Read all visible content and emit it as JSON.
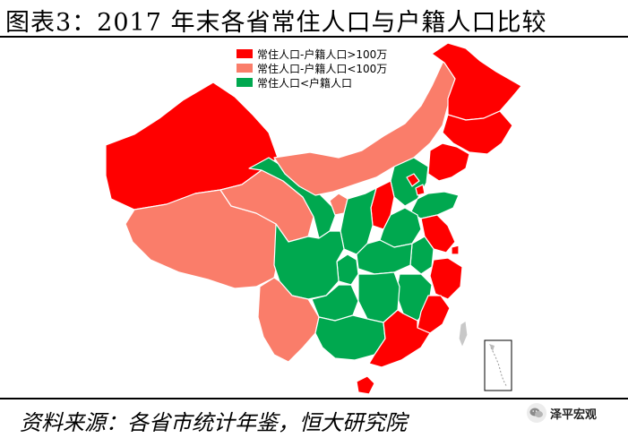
{
  "title": "图表3：2017 年末各省常住人口与户籍人口比较",
  "source": "资料来源：各省市统计年鉴，恒大研究院",
  "watermark": "泽平宏观",
  "legend": [
    {
      "label": "常住人口-户籍人口>100万",
      "color": "#ff0000"
    },
    {
      "label": "常住人口-户籍人口<100万",
      "color": "#fa7d6a"
    },
    {
      "label": "常住人口<户籍人口",
      "color": "#00a84f"
    }
  ],
  "colors": {
    "above_1m": "#ff0000",
    "below_1m": "#fa7d6a",
    "negative": "#00a84f",
    "border": "#ffffff",
    "taiwan": "#c8c8c8"
  },
  "icons": {
    "wechat": "wechat-icon"
  }
}
